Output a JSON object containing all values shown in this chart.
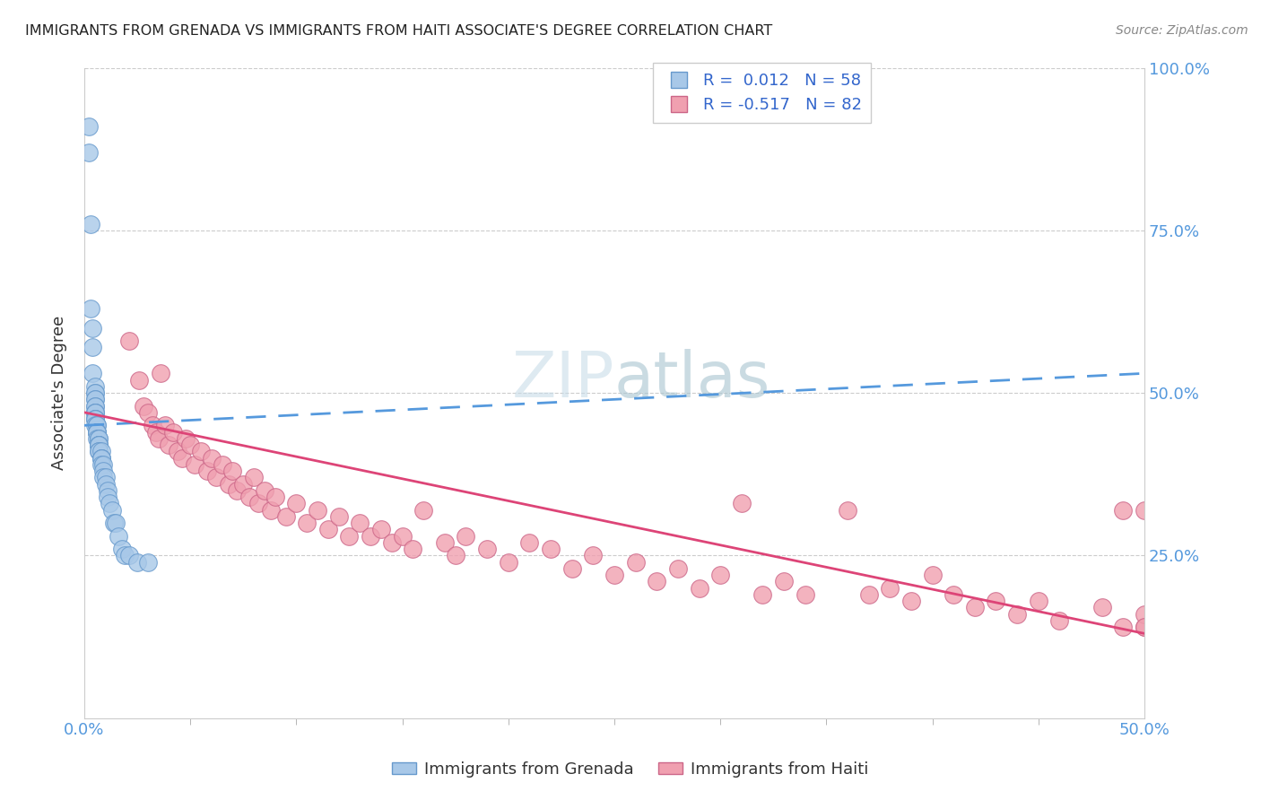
{
  "title": "IMMIGRANTS FROM GRENADA VS IMMIGRANTS FROM HAITI ASSOCIATE'S DEGREE CORRELATION CHART",
  "source": "Source: ZipAtlas.com",
  "ylabel": "Associate's Degree",
  "xlim": [
    0.0,
    0.5
  ],
  "ylim": [
    0.0,
    1.0
  ],
  "grenada_R": 0.012,
  "grenada_N": 58,
  "haiti_R": -0.517,
  "haiti_N": 82,
  "grenada_color": "#A8C8E8",
  "grenada_edge": "#6699CC",
  "haiti_color": "#F0A0B0",
  "haiti_edge": "#CC6688",
  "watermark": "ZIPatlas",
  "grenada_scatter_x": [
    0.002,
    0.002,
    0.003,
    0.003,
    0.004,
    0.004,
    0.004,
    0.005,
    0.005,
    0.005,
    0.005,
    0.005,
    0.005,
    0.005,
    0.005,
    0.005,
    0.005,
    0.005,
    0.005,
    0.005,
    0.005,
    0.006,
    0.006,
    0.006,
    0.006,
    0.006,
    0.006,
    0.006,
    0.007,
    0.007,
    0.007,
    0.007,
    0.007,
    0.007,
    0.007,
    0.007,
    0.008,
    0.008,
    0.008,
    0.008,
    0.008,
    0.009,
    0.009,
    0.009,
    0.01,
    0.01,
    0.011,
    0.011,
    0.012,
    0.013,
    0.014,
    0.015,
    0.016,
    0.018,
    0.019,
    0.021,
    0.025,
    0.03
  ],
  "grenada_scatter_y": [
    0.91,
    0.87,
    0.63,
    0.76,
    0.6,
    0.57,
    0.53,
    0.51,
    0.5,
    0.5,
    0.49,
    0.49,
    0.48,
    0.48,
    0.47,
    0.47,
    0.47,
    0.46,
    0.46,
    0.46,
    0.45,
    0.45,
    0.45,
    0.44,
    0.44,
    0.44,
    0.44,
    0.43,
    0.43,
    0.43,
    0.42,
    0.42,
    0.42,
    0.42,
    0.41,
    0.41,
    0.41,
    0.4,
    0.4,
    0.4,
    0.39,
    0.39,
    0.38,
    0.37,
    0.37,
    0.36,
    0.35,
    0.34,
    0.33,
    0.32,
    0.3,
    0.3,
    0.28,
    0.26,
    0.25,
    0.25,
    0.24,
    0.24
  ],
  "haiti_scatter_x": [
    0.021,
    0.026,
    0.028,
    0.03,
    0.032,
    0.034,
    0.035,
    0.036,
    0.038,
    0.04,
    0.042,
    0.044,
    0.046,
    0.048,
    0.05,
    0.052,
    0.055,
    0.058,
    0.06,
    0.062,
    0.065,
    0.068,
    0.07,
    0.072,
    0.075,
    0.078,
    0.08,
    0.082,
    0.085,
    0.088,
    0.09,
    0.095,
    0.1,
    0.105,
    0.11,
    0.115,
    0.12,
    0.125,
    0.13,
    0.135,
    0.14,
    0.145,
    0.15,
    0.155,
    0.16,
    0.17,
    0.175,
    0.18,
    0.19,
    0.2,
    0.21,
    0.22,
    0.23,
    0.24,
    0.25,
    0.26,
    0.27,
    0.28,
    0.29,
    0.3,
    0.31,
    0.32,
    0.33,
    0.34,
    0.36,
    0.37,
    0.38,
    0.39,
    0.4,
    0.41,
    0.42,
    0.43,
    0.44,
    0.45,
    0.46,
    0.48,
    0.49,
    0.49,
    0.5,
    0.5,
    0.5,
    0.5
  ],
  "haiti_scatter_y": [
    0.58,
    0.52,
    0.48,
    0.47,
    0.45,
    0.44,
    0.43,
    0.53,
    0.45,
    0.42,
    0.44,
    0.41,
    0.4,
    0.43,
    0.42,
    0.39,
    0.41,
    0.38,
    0.4,
    0.37,
    0.39,
    0.36,
    0.38,
    0.35,
    0.36,
    0.34,
    0.37,
    0.33,
    0.35,
    0.32,
    0.34,
    0.31,
    0.33,
    0.3,
    0.32,
    0.29,
    0.31,
    0.28,
    0.3,
    0.28,
    0.29,
    0.27,
    0.28,
    0.26,
    0.32,
    0.27,
    0.25,
    0.28,
    0.26,
    0.24,
    0.27,
    0.26,
    0.23,
    0.25,
    0.22,
    0.24,
    0.21,
    0.23,
    0.2,
    0.22,
    0.33,
    0.19,
    0.21,
    0.19,
    0.32,
    0.19,
    0.2,
    0.18,
    0.22,
    0.19,
    0.17,
    0.18,
    0.16,
    0.18,
    0.15,
    0.17,
    0.32,
    0.14,
    0.32,
    0.14,
    0.16,
    0.14
  ]
}
